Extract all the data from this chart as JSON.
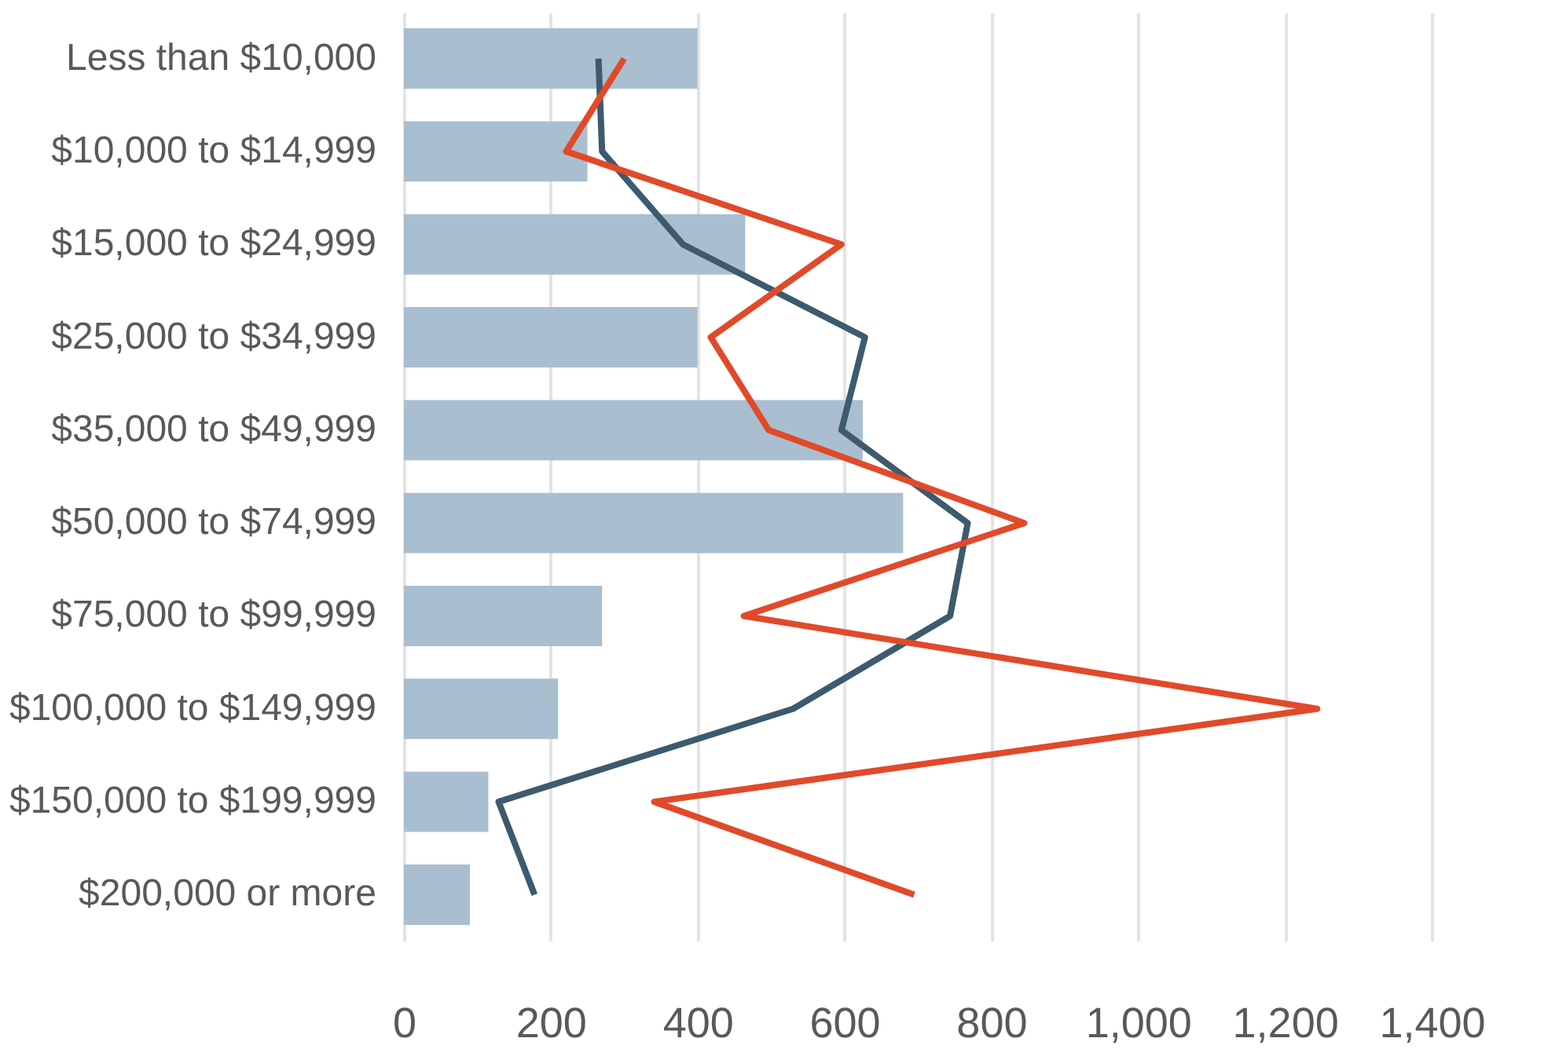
{
  "chart_data": {
    "type": "bar",
    "orientation": "horizontal",
    "categories": [
      "Less than $10,000",
      "$10,000 to $14,999",
      "$15,000 to $24,999",
      "$25,000 to $34,999",
      "$35,000 to $49,999",
      "$50,000 to $74,999",
      "$75,000 to $99,999",
      "$100,000 to $149,999",
      "$150,000 to $199,999",
      "$200,000 or more"
    ],
    "series": [
      {
        "color": "#a9bfcf",
        "values": [
          400,
          250,
          465,
          400,
          625,
          680,
          270,
          210,
          115,
          90
        ]
      },
      {
        "type": "line",
        "color": "#3d5a6e",
        "values": [
          265,
          270,
          380,
          628,
          596,
          768,
          744,
          530,
          129,
          178
        ]
      },
      {
        "type": "line",
        "color": "#e04a2a",
        "values": [
          300,
          221,
          596,
          418,
          497,
          845,
          463,
          1244,
          341,
          695
        ]
      }
    ],
    "xlim": [
      0,
      1400
    ],
    "xticks": [
      0,
      200,
      400,
      600,
      800,
      {
        "value": 1000,
        "label": "1,000"
      },
      {
        "value": 1200,
        "label": "1,200"
      },
      {
        "value": 1400,
        "label": "1,400"
      }
    ],
    "grid": "x",
    "marker": "none",
    "line_style": "solid"
  }
}
